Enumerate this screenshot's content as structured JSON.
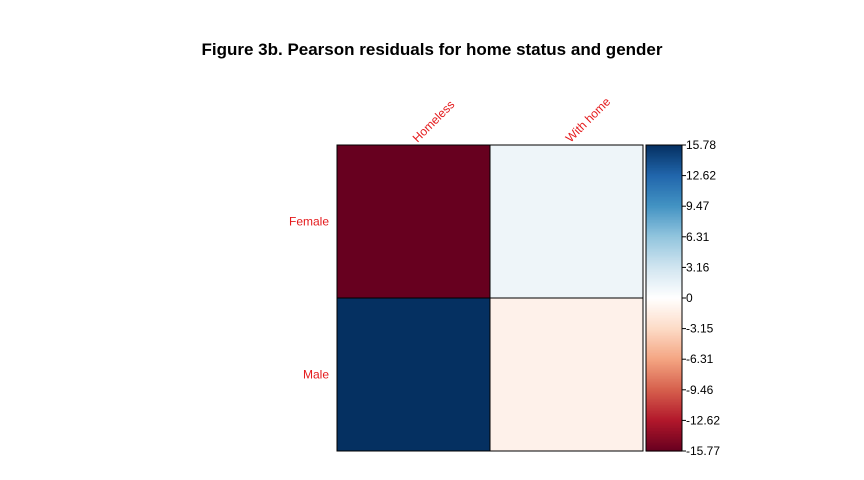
{
  "chart_data": {
    "type": "heatmap",
    "title": "Figure 3b. Pearson residuals for home status and gender",
    "columns": [
      "Homeless",
      "With home"
    ],
    "rows": [
      "Female",
      "Male"
    ],
    "values": [
      [
        -15.77,
        1.2
      ],
      [
        15.78,
        -1.2
      ]
    ],
    "colorbar": {
      "range": [
        -15.77,
        15.78
      ],
      "ticks": [
        "15.78",
        "12.62",
        "9.47",
        "6.31",
        "3.16",
        "0",
        "-3.15",
        "-6.31",
        "-9.46",
        "-12.62",
        "-15.77"
      ]
    },
    "label_color": "#E41A1C",
    "palette": [
      "#67001F",
      "#B2182B",
      "#D6604D",
      "#F4A582",
      "#FDDBC7",
      "#FFFFFF",
      "#D1E5F0",
      "#92C5DE",
      "#4393C3",
      "#2166AC",
      "#053061"
    ]
  }
}
